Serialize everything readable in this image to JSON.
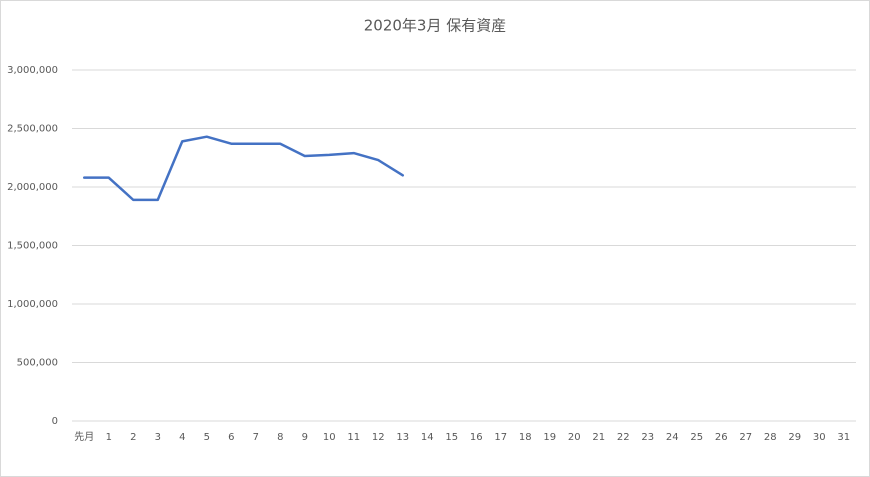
{
  "chart_data": {
    "type": "line",
    "title": "2020年3月 保有資産",
    "categories": [
      "先月",
      "1",
      "2",
      "3",
      "4",
      "5",
      "6",
      "7",
      "8",
      "9",
      "10",
      "11",
      "12",
      "13",
      "14",
      "15",
      "16",
      "17",
      "18",
      "19",
      "20",
      "21",
      "22",
      "23",
      "24",
      "25",
      "26",
      "27",
      "28",
      "29",
      "30",
      "31"
    ],
    "series": [
      {
        "name": "保有資産",
        "color": "#4472c4",
        "values": [
          2080000,
          2080000,
          1890000,
          1890000,
          2390000,
          2430000,
          2370000,
          2370000,
          2370000,
          2265000,
          2275000,
          2290000,
          2230000,
          2100000,
          null,
          null,
          null,
          null,
          null,
          null,
          null,
          null,
          null,
          null,
          null,
          null,
          null,
          null,
          null,
          null,
          null,
          null
        ]
      }
    ],
    "ylim": [
      0,
      3000000
    ],
    "yticks": [
      0,
      {
        "value": 500000,
        "label": "500,000"
      },
      {
        "value": 1000000,
        "label": "1,000,000"
      },
      {
        "value": 1500000,
        "label": "1,500,000"
      },
      {
        "value": 2000000,
        "label": "2,000,000"
      },
      {
        "value": 2500000,
        "label": "2,500,000"
      },
      {
        "value": 3000000,
        "label": "3,000,000"
      }
    ],
    "grid": true
  }
}
